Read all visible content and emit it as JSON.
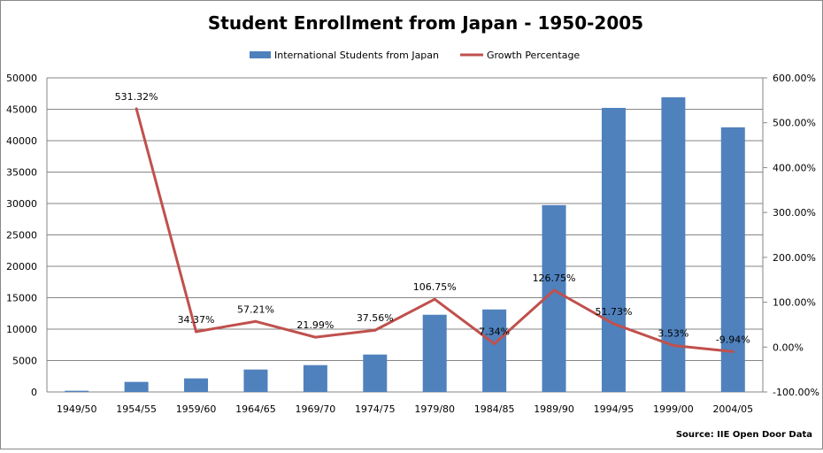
{
  "chart_data": {
    "type": "bar+line",
    "title": "Student Enrollment from Japan - 1950-2005",
    "source": "Source: IIE Open Door Data",
    "categories": [
      "1949/50",
      "1954/55",
      "1959/60",
      "1964/65",
      "1969/70",
      "1974/75",
      "1979/80",
      "1984/85",
      "1989/90",
      "1994/95",
      "1999/00",
      "2004/05"
    ],
    "series": [
      {
        "name": "International Students from Japan",
        "type": "bar",
        "axis": "left",
        "color": "#4F81BD",
        "values": [
          190,
          1600,
          2160,
          3570,
          4270,
          5960,
          12290,
          13130,
          29740,
          45220,
          46910,
          42120
        ]
      },
      {
        "name": "Growth Percentage",
        "type": "line",
        "axis": "right",
        "color": "#C0504D",
        "values": [
          null,
          531.32,
          34.37,
          57.21,
          21.99,
          37.56,
          106.75,
          7.34,
          126.75,
          51.73,
          3.53,
          -9.94
        ],
        "labels": [
          null,
          "531.32%",
          "34.37%",
          "57.21%",
          "21.99%",
          "37.56%",
          "106.75%",
          "7.34%",
          "126.75%",
          "51.73%",
          "3.53%",
          "-9.94%"
        ]
      }
    ],
    "y_left": {
      "range": [
        0,
        50000
      ],
      "ticks": [
        "0",
        "5000",
        "10000",
        "15000",
        "20000",
        "25000",
        "30000",
        "35000",
        "40000",
        "45000",
        "50000"
      ]
    },
    "y_right": {
      "range": [
        -100,
        600
      ],
      "ticks": [
        "-100.00%",
        "0.00%",
        "100.00%",
        "200.00%",
        "300.00%",
        "400.00%",
        "500.00%",
        "600.00%"
      ]
    },
    "grid": true,
    "legend": "top"
  }
}
